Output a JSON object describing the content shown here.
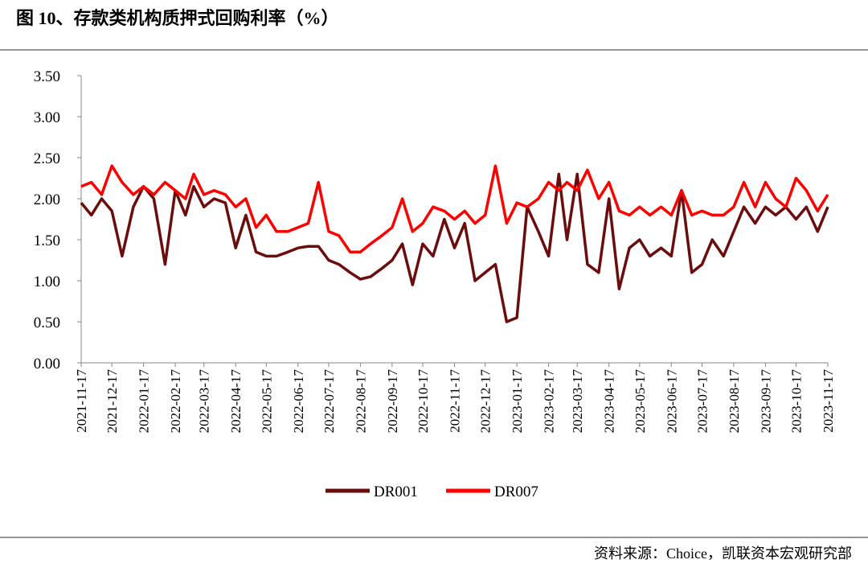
{
  "chart_data": {
    "type": "line",
    "title": "图 10、存款类机构质押式回购利率（%）",
    "source": "资料来源：Choice，凯联资本宏观研究部",
    "x": [
      "2021-11-17",
      "2021-11-27",
      "2021-12-07",
      "2021-12-17",
      "2021-12-27",
      "2022-01-07",
      "2022-01-17",
      "2022-01-27",
      "2022-02-07",
      "2022-02-17",
      "2022-02-27",
      "2022-03-07",
      "2022-03-17",
      "2022-03-27",
      "2022-04-07",
      "2022-04-17",
      "2022-04-27",
      "2022-05-07",
      "2022-05-17",
      "2022-05-27",
      "2022-06-07",
      "2022-06-17",
      "2022-06-27",
      "2022-07-07",
      "2022-07-17",
      "2022-07-27",
      "2022-08-07",
      "2022-08-17",
      "2022-08-27",
      "2022-09-07",
      "2022-09-17",
      "2022-09-27",
      "2022-10-07",
      "2022-10-17",
      "2022-10-27",
      "2022-11-07",
      "2022-11-17",
      "2022-11-27",
      "2022-12-07",
      "2022-12-17",
      "2022-12-27",
      "2023-01-07",
      "2023-01-17",
      "2023-01-27",
      "2023-02-07",
      "2023-02-17",
      "2023-02-27",
      "2023-03-07",
      "2023-03-17",
      "2023-03-27",
      "2023-04-07",
      "2023-04-17",
      "2023-04-27",
      "2023-05-07",
      "2023-05-17",
      "2023-05-27",
      "2023-06-07",
      "2023-06-17",
      "2023-06-27",
      "2023-07-07",
      "2023-07-17",
      "2023-07-27",
      "2023-08-07",
      "2023-08-17",
      "2023-08-27",
      "2023-09-07",
      "2023-09-17",
      "2023-09-27",
      "2023-10-07",
      "2023-10-17",
      "2023-10-27",
      "2023-11-07",
      "2023-11-17"
    ],
    "series": [
      {
        "name": "DR001",
        "color": "#6b0d0d",
        "values": [
          1.95,
          1.8,
          2.0,
          1.85,
          1.3,
          1.9,
          2.15,
          2.0,
          1.2,
          2.1,
          1.8,
          2.15,
          1.9,
          2.0,
          1.95,
          1.4,
          1.8,
          1.35,
          1.3,
          1.3,
          1.35,
          1.4,
          1.42,
          1.42,
          1.25,
          1.2,
          1.1,
          1.02,
          1.05,
          1.15,
          1.25,
          1.45,
          0.95,
          1.45,
          1.3,
          1.75,
          1.4,
          1.7,
          1.0,
          1.1,
          1.2,
          0.5,
          0.55,
          1.9,
          1.6,
          1.3,
          2.3,
          1.5,
          2.3,
          1.2,
          1.1,
          2.0,
          0.9,
          1.4,
          1.5,
          1.3,
          1.4,
          1.3,
          2.1,
          1.1,
          1.2,
          1.5,
          1.3,
          1.6,
          1.9,
          1.7,
          1.9,
          1.8,
          1.9,
          1.75,
          1.9,
          1.6,
          1.9
        ]
      },
      {
        "name": "DR007",
        "color": "#ff0000",
        "values": [
          2.15,
          2.2,
          2.05,
          2.4,
          2.2,
          2.05,
          2.15,
          2.05,
          2.2,
          2.1,
          2.0,
          2.3,
          2.05,
          2.1,
          2.05,
          1.9,
          2.0,
          1.65,
          1.8,
          1.6,
          1.6,
          1.65,
          1.7,
          2.2,
          1.6,
          1.55,
          1.35,
          1.35,
          1.45,
          1.55,
          1.65,
          2.0,
          1.6,
          1.7,
          1.9,
          1.85,
          1.75,
          1.85,
          1.7,
          1.8,
          2.4,
          1.7,
          1.95,
          1.9,
          2.0,
          2.2,
          2.1,
          2.2,
          2.1,
          2.35,
          2.0,
          2.2,
          1.85,
          1.8,
          1.9,
          1.8,
          1.9,
          1.8,
          2.1,
          1.8,
          1.85,
          1.8,
          1.8,
          1.9,
          2.2,
          1.9,
          2.2,
          2.0,
          1.9,
          2.25,
          2.1,
          1.85,
          2.05
        ]
      }
    ],
    "xlim": [
      "2021-11-17",
      "2023-11-17"
    ],
    "xticks": [
      "2021-11-17",
      "2021-12-17",
      "2022-01-17",
      "2022-02-17",
      "2022-03-17",
      "2022-04-17",
      "2022-05-17",
      "2022-06-17",
      "2022-07-17",
      "2022-08-17",
      "2022-09-17",
      "2022-10-17",
      "2022-11-17",
      "2022-12-17",
      "2023-01-17",
      "2023-02-17",
      "2023-03-17",
      "2023-04-17",
      "2023-05-17",
      "2023-06-17",
      "2023-07-17",
      "2023-08-17",
      "2023-09-17",
      "2023-10-17",
      "2023-11-17"
    ],
    "ylim": [
      0,
      3.5
    ],
    "yticks": [
      {
        "value": 0,
        "label": "0.00"
      },
      {
        "value": 0.5,
        "label": "0.50"
      },
      {
        "value": 1,
        "label": "1.00"
      },
      {
        "value": 1.5,
        "label": "1.50"
      },
      {
        "value": 2,
        "label": "2.00"
      },
      {
        "value": 2.5,
        "label": "2.50"
      },
      {
        "value": 3,
        "label": "3.00"
      },
      {
        "value": 3.5,
        "label": "3.50"
      }
    ],
    "legend": "bottom"
  }
}
